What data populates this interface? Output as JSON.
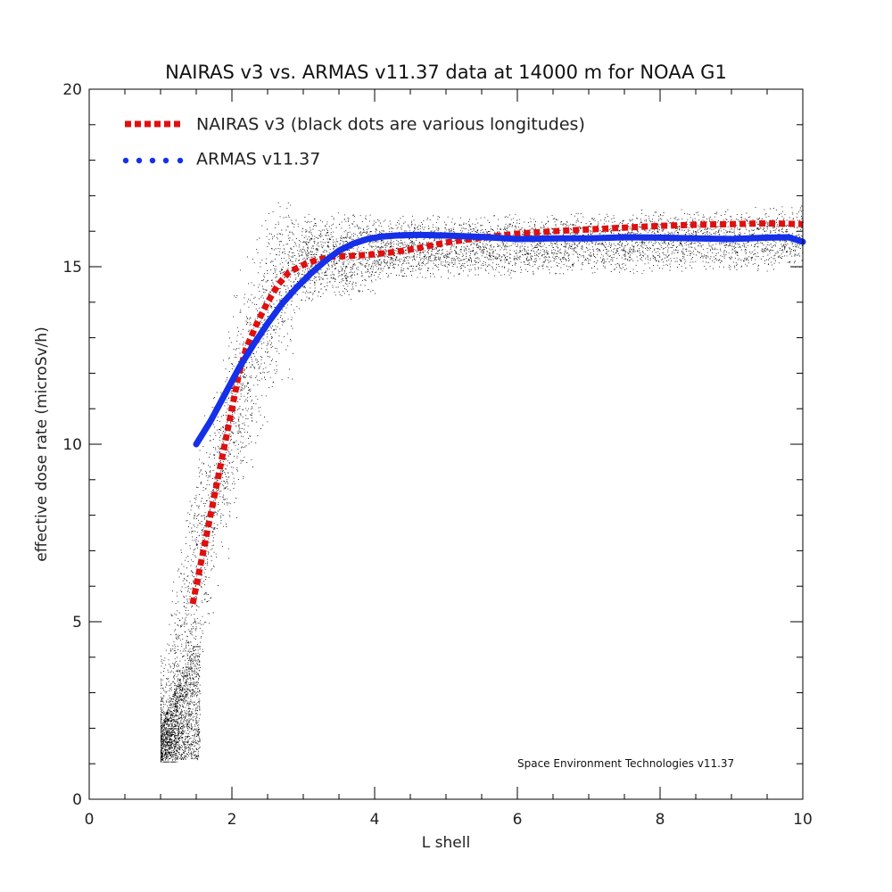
{
  "chart_data": {
    "type": "line",
    "title": "NAIRAS  v3 vs. ARMAS v11.37 data at 14000 m for NOAA G1",
    "xlabel": "L shell",
    "ylabel": "effective dose rate (microSv/h)",
    "xlim": [
      0,
      10
    ],
    "ylim": [
      0,
      20
    ],
    "x_ticks": [
      0,
      2,
      4,
      6,
      8,
      10
    ],
    "y_ticks": [
      0,
      5,
      10,
      15,
      20
    ],
    "grid": false,
    "legend_position": "top-left",
    "annotation": "Space Environment Technologies v11.37",
    "series": [
      {
        "name": "NAIRAS v3 (black dots are various longitudes)",
        "color": "#e01010",
        "style": "dotted",
        "x": [
          1.45,
          1.6,
          1.8,
          2.0,
          2.1,
          2.2,
          2.35,
          2.5,
          2.65,
          2.8,
          3.0,
          3.2,
          3.4,
          3.6,
          3.8,
          4.0,
          4.3,
          4.6,
          5.0,
          5.5,
          6.0,
          6.5,
          7.0,
          7.5,
          8.0,
          8.5,
          9.0,
          9.5,
          10.0
        ],
        "values": [
          5.5,
          7.0,
          9.0,
          11.0,
          12.0,
          12.7,
          13.4,
          14.0,
          14.5,
          14.85,
          15.05,
          15.2,
          15.28,
          15.3,
          15.32,
          15.35,
          15.42,
          15.52,
          15.68,
          15.82,
          15.93,
          16.0,
          16.05,
          16.1,
          16.15,
          16.18,
          16.2,
          16.22,
          16.2
        ]
      },
      {
        "name": "ARMAS v11.37",
        "color": "#1530e8",
        "style": "solid",
        "x": [
          1.5,
          1.7,
          1.9,
          2.1,
          2.3,
          2.5,
          2.7,
          2.9,
          3.1,
          3.3,
          3.5,
          3.7,
          3.9,
          4.1,
          4.3,
          4.6,
          5.0,
          5.5,
          6.0,
          6.5,
          7.0,
          7.5,
          8.0,
          8.5,
          9.0,
          9.5,
          9.8,
          10.0
        ],
        "values": [
          10.0,
          10.65,
          11.4,
          12.15,
          12.8,
          13.4,
          13.95,
          14.4,
          14.8,
          15.15,
          15.45,
          15.65,
          15.78,
          15.85,
          15.88,
          15.9,
          15.88,
          15.84,
          15.78,
          15.8,
          15.8,
          15.83,
          15.82,
          15.8,
          15.78,
          15.82,
          15.83,
          15.7
        ]
      }
    ]
  }
}
